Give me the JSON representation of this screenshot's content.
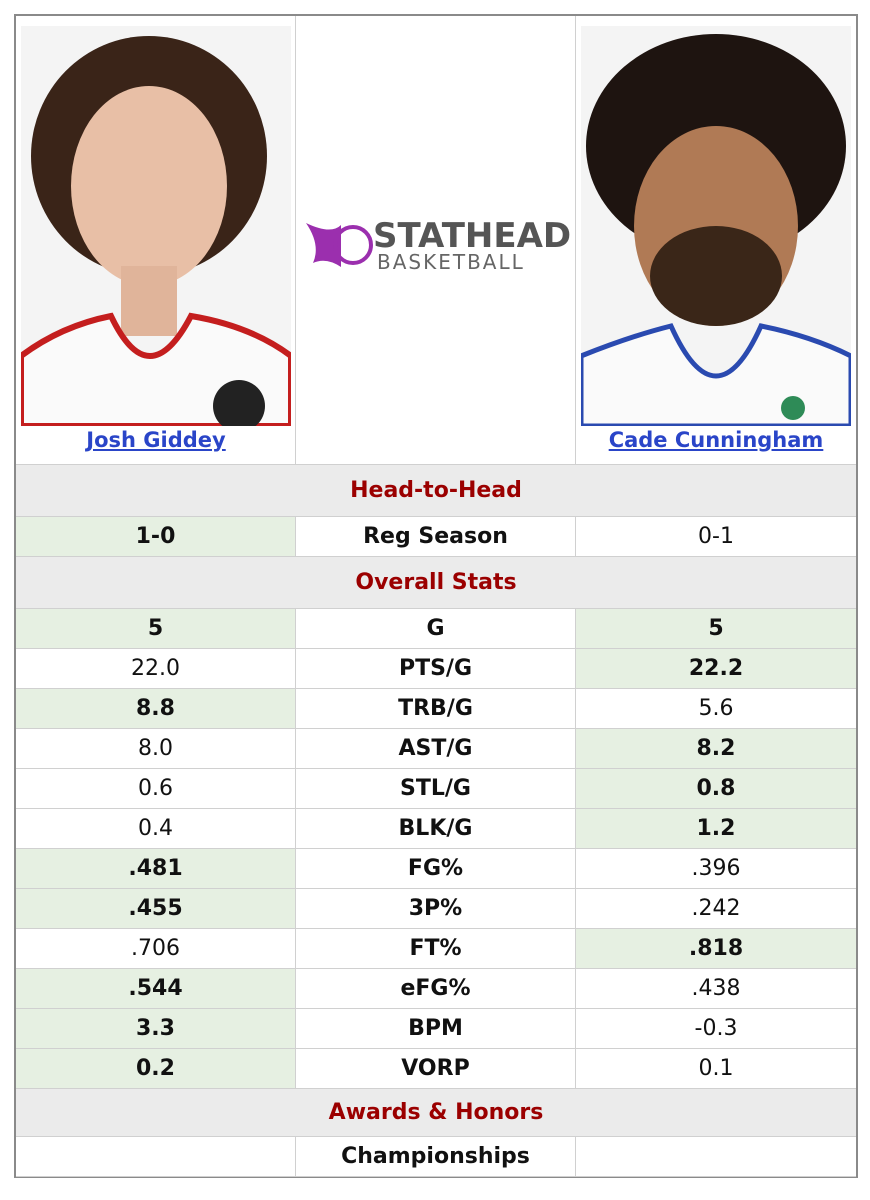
{
  "players": [
    {
      "name": "Josh Giddey"
    },
    {
      "name": "Cade Cunningham"
    }
  ],
  "logo": {
    "brand": "STATHEAD",
    "sport": "BASKETBALL"
  },
  "sections": [
    {
      "title": "Head-to-Head",
      "rows": [
        {
          "label": "Reg Season",
          "left": "1-0",
          "right": "0-1",
          "leader": "left"
        }
      ]
    },
    {
      "title": "Overall Stats",
      "rows": [
        {
          "label": "G",
          "left": "5",
          "right": "5",
          "leader": "both"
        },
        {
          "label": "PTS/G",
          "left": "22.0",
          "right": "22.2",
          "leader": "right"
        },
        {
          "label": "TRB/G",
          "left": "8.8",
          "right": "5.6",
          "leader": "left"
        },
        {
          "label": "AST/G",
          "left": "8.0",
          "right": "8.2",
          "leader": "right"
        },
        {
          "label": "STL/G",
          "left": "0.6",
          "right": "0.8",
          "leader": "right"
        },
        {
          "label": "BLK/G",
          "left": "0.4",
          "right": "1.2",
          "leader": "right"
        },
        {
          "label": "FG%",
          "left": ".481",
          "right": ".396",
          "leader": "left"
        },
        {
          "label": "3P%",
          "left": ".455",
          "right": ".242",
          "leader": "left"
        },
        {
          "label": "FT%",
          "left": ".706",
          "right": ".818",
          "leader": "right"
        },
        {
          "label": "eFG%",
          "left": ".544",
          "right": ".438",
          "leader": "left"
        },
        {
          "label": "BPM",
          "left": "3.3",
          "right": "-0.3",
          "leader": "left"
        },
        {
          "label": "VORP",
          "left": "0.2",
          "right": "0.1",
          "leader": "left"
        }
      ]
    },
    {
      "title": "Awards & Honors",
      "rows": [
        {
          "label": "Championships"
        }
      ]
    }
  ]
}
